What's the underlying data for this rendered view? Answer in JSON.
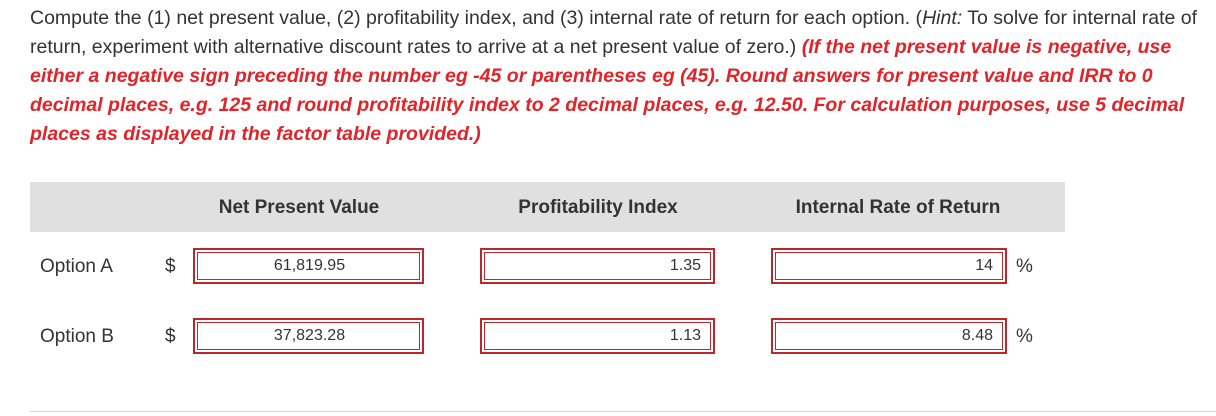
{
  "question": {
    "main_text": "Compute the (1) net present value, (2) profitability index, and (3) internal rate of return for each option. (",
    "hint_label": "Hint:",
    "hint_text": " To solve for internal rate of return, experiment with alternative discount rates to arrive at a net present value of zero.) ",
    "instructions": "(If the net present value is negative, use either a negative sign preceding the number eg -45 or parentheses eg (45). Round answers for present value and IRR to 0 decimal places, e.g. 125 and round profitability index to 2 decimal places, e.g. 12.50. For calculation purposes, use 5 decimal places as displayed in the factor table provided.)"
  },
  "table": {
    "headers": {
      "npv": "Net Present Value",
      "pi": "Profitability Index",
      "irr": "Internal Rate of Return"
    },
    "currency_symbol": "$",
    "percent_symbol": "%",
    "rows": [
      {
        "label": "Option A",
        "npv": "61,819.95",
        "pi": "1.35",
        "irr": "14"
      },
      {
        "label": "Option B",
        "npv": "37,823.28",
        "pi": "1.13",
        "irr": "8.48"
      }
    ]
  },
  "colors": {
    "instruction_red": "#e0242a",
    "field_border": "#b8282d",
    "header_bg": "#e0e0e0"
  }
}
